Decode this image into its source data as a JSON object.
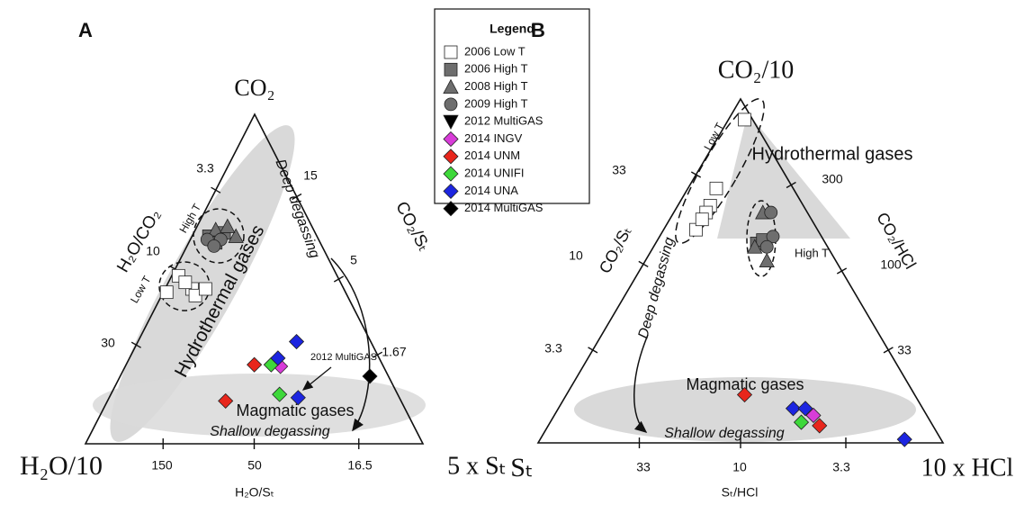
{
  "legend": {
    "title": "Legend",
    "entries": [
      {
        "name": "2006 Low T",
        "marker": "square",
        "color": "#ffffff"
      },
      {
        "name": "2006 High T",
        "marker": "square",
        "color": "#6e6e6e"
      },
      {
        "name": "2008 High T",
        "marker": "triangle",
        "color": "#6e6e6e"
      },
      {
        "name": "2009 High T",
        "marker": "circle",
        "color": "#6e6e6e"
      },
      {
        "name": "2012 MultiGAS",
        "marker": "triangle-down",
        "color": "#000000"
      },
      {
        "name": "2014 INGV",
        "marker": "diamond",
        "color": "#d83cd8"
      },
      {
        "name": "2014 UNM",
        "marker": "diamond",
        "color": "#e8261c"
      },
      {
        "name": "2014 UNIFI",
        "marker": "diamond",
        "color": "#3ed83a"
      },
      {
        "name": "2014 UNA",
        "marker": "diamond",
        "color": "#1c25e0"
      },
      {
        "name": "2014 MultiGAS",
        "marker": "diamond",
        "color": "#000000"
      }
    ]
  },
  "chart_data": [
    {
      "type": "ternary",
      "panel": "A",
      "vertices": {
        "top": "CO₂",
        "left": "H₂O/10",
        "right": "5 x Sₜ"
      },
      "edge_labels": {
        "left": "H₂O/CO₂",
        "right": "CO₂/Sₜ",
        "bottom": "H₂O/Sₜ"
      },
      "left_ticks": [
        3.3,
        10,
        30
      ],
      "right_ticks": [
        15,
        5,
        1.67
      ],
      "bottom_ticks": [
        150,
        50,
        16.5
      ],
      "annotations": [
        "Deep degassing",
        "Hydrothermal gases",
        "Magmatic gases",
        "Shallow degassing",
        "2012 MultiGAS",
        "High T",
        "Low T"
      ],
      "series": [
        {
          "top": [
            0.46,
            0.51,
            0.47,
            0.45,
            0.47,
            0.49
          ],
          "right": [
            0.01,
            0.02,
            0.08,
            0.1,
            0.12,
            0.05
          ]
        },
        {
          "top": [
            0.63,
            0.64,
            0.61
          ],
          "right": [
            0.05,
            0.09,
            0.08
          ]
        },
        {
          "top": [
            0.65,
            0.63,
            0.66
          ],
          "right": [
            0.06,
            0.13,
            0.09
          ]
        },
        {
          "top": [
            0.62,
            0.62,
            0.6
          ],
          "right": [
            0.05,
            0.09,
            0.08
          ]
        },
        {
          "top": [],
          "right": []
        },
        {
          "top": [
            0.235
          ],
          "right": [
            0.46
          ]
        },
        {
          "top": [
            0.24,
            0.13
          ],
          "right": [
            0.38,
            0.35
          ]
        },
        {
          "top": [
            0.24,
            0.15
          ],
          "right": [
            0.43,
            0.5
          ]
        },
        {
          "top": [
            0.31,
            0.26,
            0.14
          ],
          "right": [
            0.47,
            0.44,
            0.56
          ]
        },
        {
          "top": [
            0.205
          ],
          "right": [
            0.74
          ]
        }
      ]
    },
    {
      "type": "ternary",
      "panel": "B",
      "vertices": {
        "top": "CO₂/10",
        "left": "Sₜ",
        "right": "10 x HCl"
      },
      "edge_labels": {
        "left": "CO₂/Sₜ",
        "right": "CO₂/HCl",
        "bottom": "Sₜ/HCl"
      },
      "left_ticks": [
        33,
        10,
        3.3
      ],
      "right_ticks": [
        300,
        100,
        33
      ],
      "bottom_ticks": [
        33,
        10,
        3.3
      ],
      "annotations": [
        "Hydrothermal gases",
        "High T",
        "Low T",
        "Deep degassing",
        "Magmatic gases",
        "Shallow degassing"
      ],
      "series": [
        {
          "top": [
            0.94,
            0.74,
            0.69,
            0.67,
            0.62,
            0.65
          ],
          "right": [
            0.04,
            0.07,
            0.08,
            0.08,
            0.08,
            0.08
          ]
        },
        {
          "top": [
            0.58,
            0.59
          ],
          "right": [
            0.25,
            0.26
          ]
        },
        {
          "top": [
            0.67,
            0.53,
            0.57
          ],
          "right": [
            0.22,
            0.3,
            0.25
          ]
        },
        {
          "top": [
            0.67,
            0.6,
            0.57
          ],
          "right": [
            0.24,
            0.28,
            0.28
          ]
        },
        {
          "top": [],
          "right": []
        },
        {
          "top": [
            0.08
          ],
          "right": [
            0.64
          ]
        },
        {
          "top": [
            0.14,
            0.05
          ],
          "right": [
            0.44,
            0.67
          ]
        },
        {
          "top": [
            0.06
          ],
          "right": [
            0.62
          ]
        },
        {
          "top": [
            0.1,
            0.1,
            0.01
          ],
          "right": [
            0.58,
            0.61,
            0.9
          ]
        },
        {
          "top": [],
          "right": []
        }
      ]
    }
  ]
}
